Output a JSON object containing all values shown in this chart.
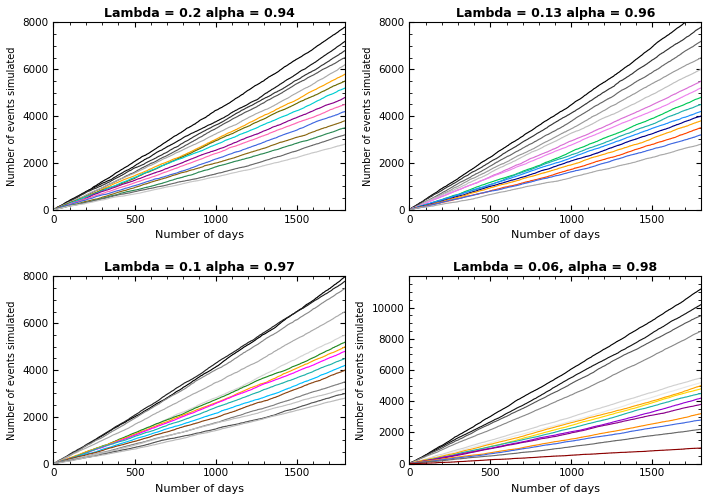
{
  "subplots": [
    {
      "title": "Lambda = 0.2 alpha = 0.94",
      "ylim": [
        0,
        8000
      ],
      "xlim": [
        0,
        1800
      ],
      "yticks": [
        0,
        2000,
        4000,
        6000,
        8000
      ],
      "xticks": [
        0,
        500,
        1000,
        1500
      ],
      "seed": 42,
      "n_lines": 15,
      "final_values": [
        7800,
        7200,
        6800,
        6500,
        6200,
        5800,
        5500,
        5200,
        4800,
        4500,
        4200,
        3800,
        3500,
        3200,
        2800
      ]
    },
    {
      "title": "Lambda = 0.13 alpha = 0.96",
      "ylim": [
        0,
        8000
      ],
      "xlim": [
        0,
        1800
      ],
      "yticks": [
        0,
        2000,
        4000,
        6000,
        8000
      ],
      "xticks": [
        0,
        500,
        1000,
        1500
      ],
      "seed": 55,
      "n_lines": 15,
      "final_values": [
        8500,
        7800,
        7200,
        6500,
        6000,
        5500,
        5200,
        4800,
        4500,
        4200,
        4000,
        3800,
        3500,
        3200,
        2800
      ]
    },
    {
      "title": "Lambda = 0.1 alpha = 0.97",
      "ylim": [
        0,
        8000
      ],
      "xlim": [
        0,
        1800
      ],
      "yticks": [
        0,
        2000,
        4000,
        6000,
        8000
      ],
      "xticks": [
        0,
        500,
        1000,
        1500
      ],
      "seed": 77,
      "n_lines": 15,
      "final_values": [
        8000,
        7800,
        7500,
        6500,
        5500,
        5200,
        5000,
        4800,
        4500,
        4200,
        4000,
        3500,
        3200,
        3000,
        2800
      ]
    },
    {
      "title": "Lambda = 0.06, alpha = 0.98",
      "ylim": [
        0,
        12000
      ],
      "xlim": [
        0,
        1800
      ],
      "yticks": [
        0,
        2000,
        4000,
        6000,
        8000,
        10000
      ],
      "xticks": [
        0,
        500,
        1000,
        1500
      ],
      "seed": 99,
      "n_lines": 15,
      "final_values": [
        11200,
        10200,
        9500,
        8500,
        5500,
        5200,
        5000,
        4800,
        4500,
        4200,
        3800,
        3200,
        2800,
        2200,
        1000
      ]
    }
  ],
  "xlabel": "Number of days",
  "ylabel": "Number of events simulated",
  "bg_color": "#ffffff",
  "color_sets": [
    [
      "#000000",
      "#111111",
      "#333333",
      "#555555",
      "#aaaaaa",
      "#ffa500",
      "#6b6b00",
      "#00ced1",
      "#8b008b",
      "#ff69b4",
      "#4169e1",
      "#8b6914",
      "#2e8b57",
      "#696969",
      "#c8c8c8"
    ],
    [
      "#000000",
      "#333333",
      "#666666",
      "#999999",
      "#c0c0c0",
      "#da70d6",
      "#ee82ee",
      "#00c957",
      "#20b2aa",
      "#1e90ff",
      "#00008b",
      "#ffa500",
      "#ff4500",
      "#4169e1",
      "#aaaaaa"
    ],
    [
      "#000000",
      "#222222",
      "#888888",
      "#aaaaaa",
      "#d3d3d3",
      "#228b22",
      "#ffa500",
      "#ff00ff",
      "#20b2aa",
      "#00bfff",
      "#8b4513",
      "#808080",
      "#c0c0c0",
      "#555555",
      "#bbbbbb"
    ],
    [
      "#000000",
      "#111111",
      "#555555",
      "#888888",
      "#d0d0d0",
      "#e8e8e8",
      "#ffa500",
      "#ffd700",
      "#20b2aa",
      "#9400d3",
      "#8b008b",
      "#ff8c00",
      "#4169e1",
      "#696969",
      "#8b0000"
    ]
  ]
}
